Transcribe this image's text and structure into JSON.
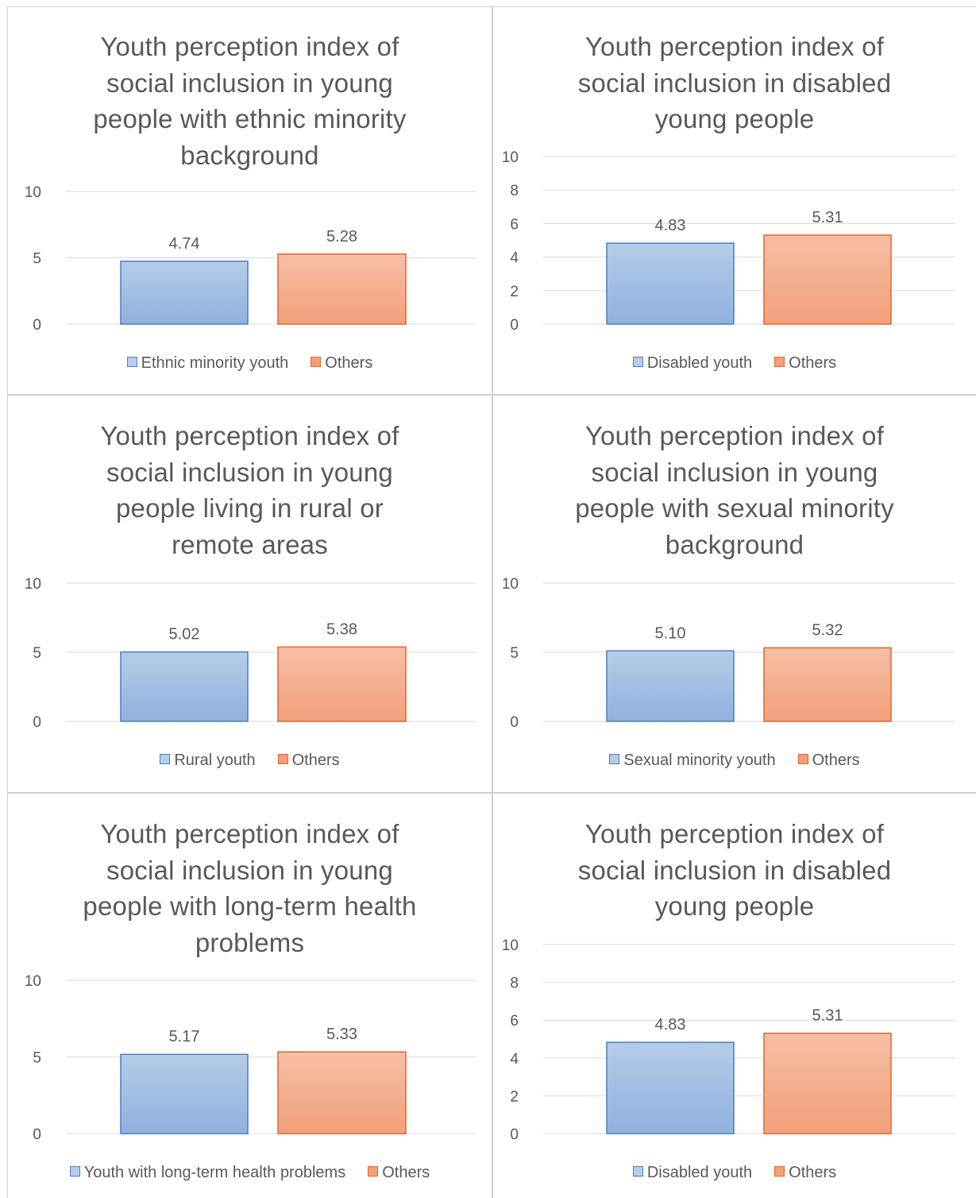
{
  "colors": {
    "blue_fill_top": "#b5cde9",
    "blue_fill_bottom": "#8fb1dd",
    "blue_stroke": "#4a7fc1",
    "orange_fill_top": "#f7bfa6",
    "orange_fill_bottom": "#f2a07a",
    "orange_stroke": "#e0662f",
    "grid": "#d9d9d9",
    "text": "#595959"
  },
  "chart_data": [
    {
      "type": "bar",
      "title": "Youth perception index of social inclusion in young people with ethnic minority background",
      "title_lines": [
        "Youth perception index of",
        "social inclusion in young",
        "people with ethnic minority",
        "background"
      ],
      "series": [
        {
          "name": "Ethnic minority youth",
          "values": [
            4.74
          ],
          "color": "blue"
        },
        {
          "name": "Others",
          "values": [
            5.28
          ],
          "color": "orange"
        }
      ],
      "data_labels": [
        "4.74",
        "5.28"
      ],
      "ylim": [
        0,
        10
      ],
      "yticks": [
        0,
        5,
        10
      ],
      "grid": true,
      "legend": "bottom"
    },
    {
      "type": "bar",
      "title": "Youth perception index of social inclusion in disabled young people",
      "title_lines": [
        "Youth perception index of",
        "social inclusion in disabled",
        "young people"
      ],
      "series": [
        {
          "name": "Disabled youth",
          "values": [
            4.83
          ],
          "color": "blue"
        },
        {
          "name": "Others",
          "values": [
            5.31
          ],
          "color": "orange"
        }
      ],
      "data_labels": [
        "4.83",
        "5.31"
      ],
      "ylim": [
        0,
        10
      ],
      "yticks": [
        0,
        2,
        4,
        6,
        8,
        10
      ],
      "grid": true,
      "legend": "bottom"
    },
    {
      "type": "bar",
      "title": "Youth perception index of social inclusion in young people living in rural or remote areas",
      "title_lines": [
        "Youth perception index of",
        "social inclusion in young",
        "people living in rural or",
        "remote areas"
      ],
      "series": [
        {
          "name": "Rural youth",
          "values": [
            5.02
          ],
          "color": "blue"
        },
        {
          "name": "Others",
          "values": [
            5.38
          ],
          "color": "orange"
        }
      ],
      "data_labels": [
        "5.02",
        "5.38"
      ],
      "ylim": [
        0,
        10
      ],
      "yticks": [
        0,
        5,
        10
      ],
      "grid": true,
      "legend": "bottom"
    },
    {
      "type": "bar",
      "title": "Youth perception index of social inclusion in young people with sexual minority background",
      "title_lines": [
        "Youth perception index of",
        "social inclusion in young",
        "people with sexual minority",
        "background"
      ],
      "series": [
        {
          "name": "Sexual minority youth",
          "values": [
            5.1
          ],
          "color": "blue"
        },
        {
          "name": "Others",
          "values": [
            5.32
          ],
          "color": "orange"
        }
      ],
      "data_labels": [
        "5.10",
        "5.32"
      ],
      "ylim": [
        0,
        10
      ],
      "yticks": [
        0,
        5,
        10
      ],
      "grid": true,
      "legend": "bottom"
    },
    {
      "type": "bar",
      "title": "Youth perception index of social inclusion in young people with long-term health problems",
      "title_lines": [
        "Youth perception index of",
        "social inclusion in young",
        "people with long-term health",
        "problems"
      ],
      "series": [
        {
          "name": "Youth with long-term health problems",
          "values": [
            5.17
          ],
          "color": "blue"
        },
        {
          "name": "Others",
          "values": [
            5.33
          ],
          "color": "orange"
        }
      ],
      "data_labels": [
        "5.17",
        "5.33"
      ],
      "ylim": [
        0,
        10
      ],
      "yticks": [
        0,
        5,
        10
      ],
      "grid": true,
      "legend": "bottom"
    },
    {
      "type": "bar",
      "title": "Youth perception index of social inclusion in disabled young people",
      "title_lines": [
        "Youth perception index of",
        "social inclusion in disabled",
        "young people"
      ],
      "series": [
        {
          "name": "Disabled youth",
          "values": [
            4.83
          ],
          "color": "blue"
        },
        {
          "name": "Others",
          "values": [
            5.31
          ],
          "color": "orange"
        }
      ],
      "data_labels": [
        "4.83",
        "5.31"
      ],
      "ylim": [
        0,
        10
      ],
      "yticks": [
        0,
        2,
        4,
        6,
        8,
        10
      ],
      "grid": true,
      "legend": "bottom"
    }
  ]
}
